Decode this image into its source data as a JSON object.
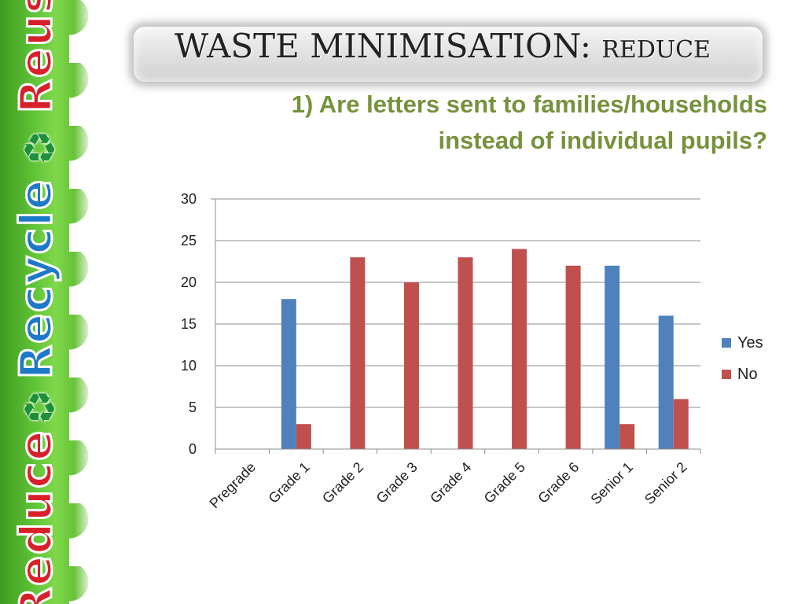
{
  "slide": {
    "banner_words": [
      "Reuse",
      "Recycle",
      "Reduce"
    ],
    "banner_icon": "recycle-icon",
    "title_main": "WASTE MINIMISATION:",
    "title_sub": "REDUCE",
    "question_line1": "1) Are letters sent to families/households",
    "question_line2": "instead of individual pupils?"
  },
  "colors": {
    "yes": "#4f81bd",
    "no": "#c0504d",
    "question": "#76923c"
  },
  "chart_data": {
    "type": "bar",
    "categories": [
      "Pregrade",
      "Grade 1",
      "Grade 2",
      "Grade 3",
      "Grade 4",
      "Grade 5",
      "Grade 6",
      "Senior 1",
      "Senior 2"
    ],
    "series": [
      {
        "name": "Yes",
        "values": [
          0,
          18,
          0,
          0,
          0,
          0,
          0,
          22,
          16
        ]
      },
      {
        "name": "No",
        "values": [
          0,
          3,
          23,
          20,
          23,
          24,
          22,
          3,
          6
        ]
      }
    ],
    "ylim": [
      0,
      30
    ],
    "yticks": [
      "0",
      "5",
      "10",
      "15",
      "20",
      "25",
      "30"
    ],
    "grid": true,
    "legend": "right"
  }
}
